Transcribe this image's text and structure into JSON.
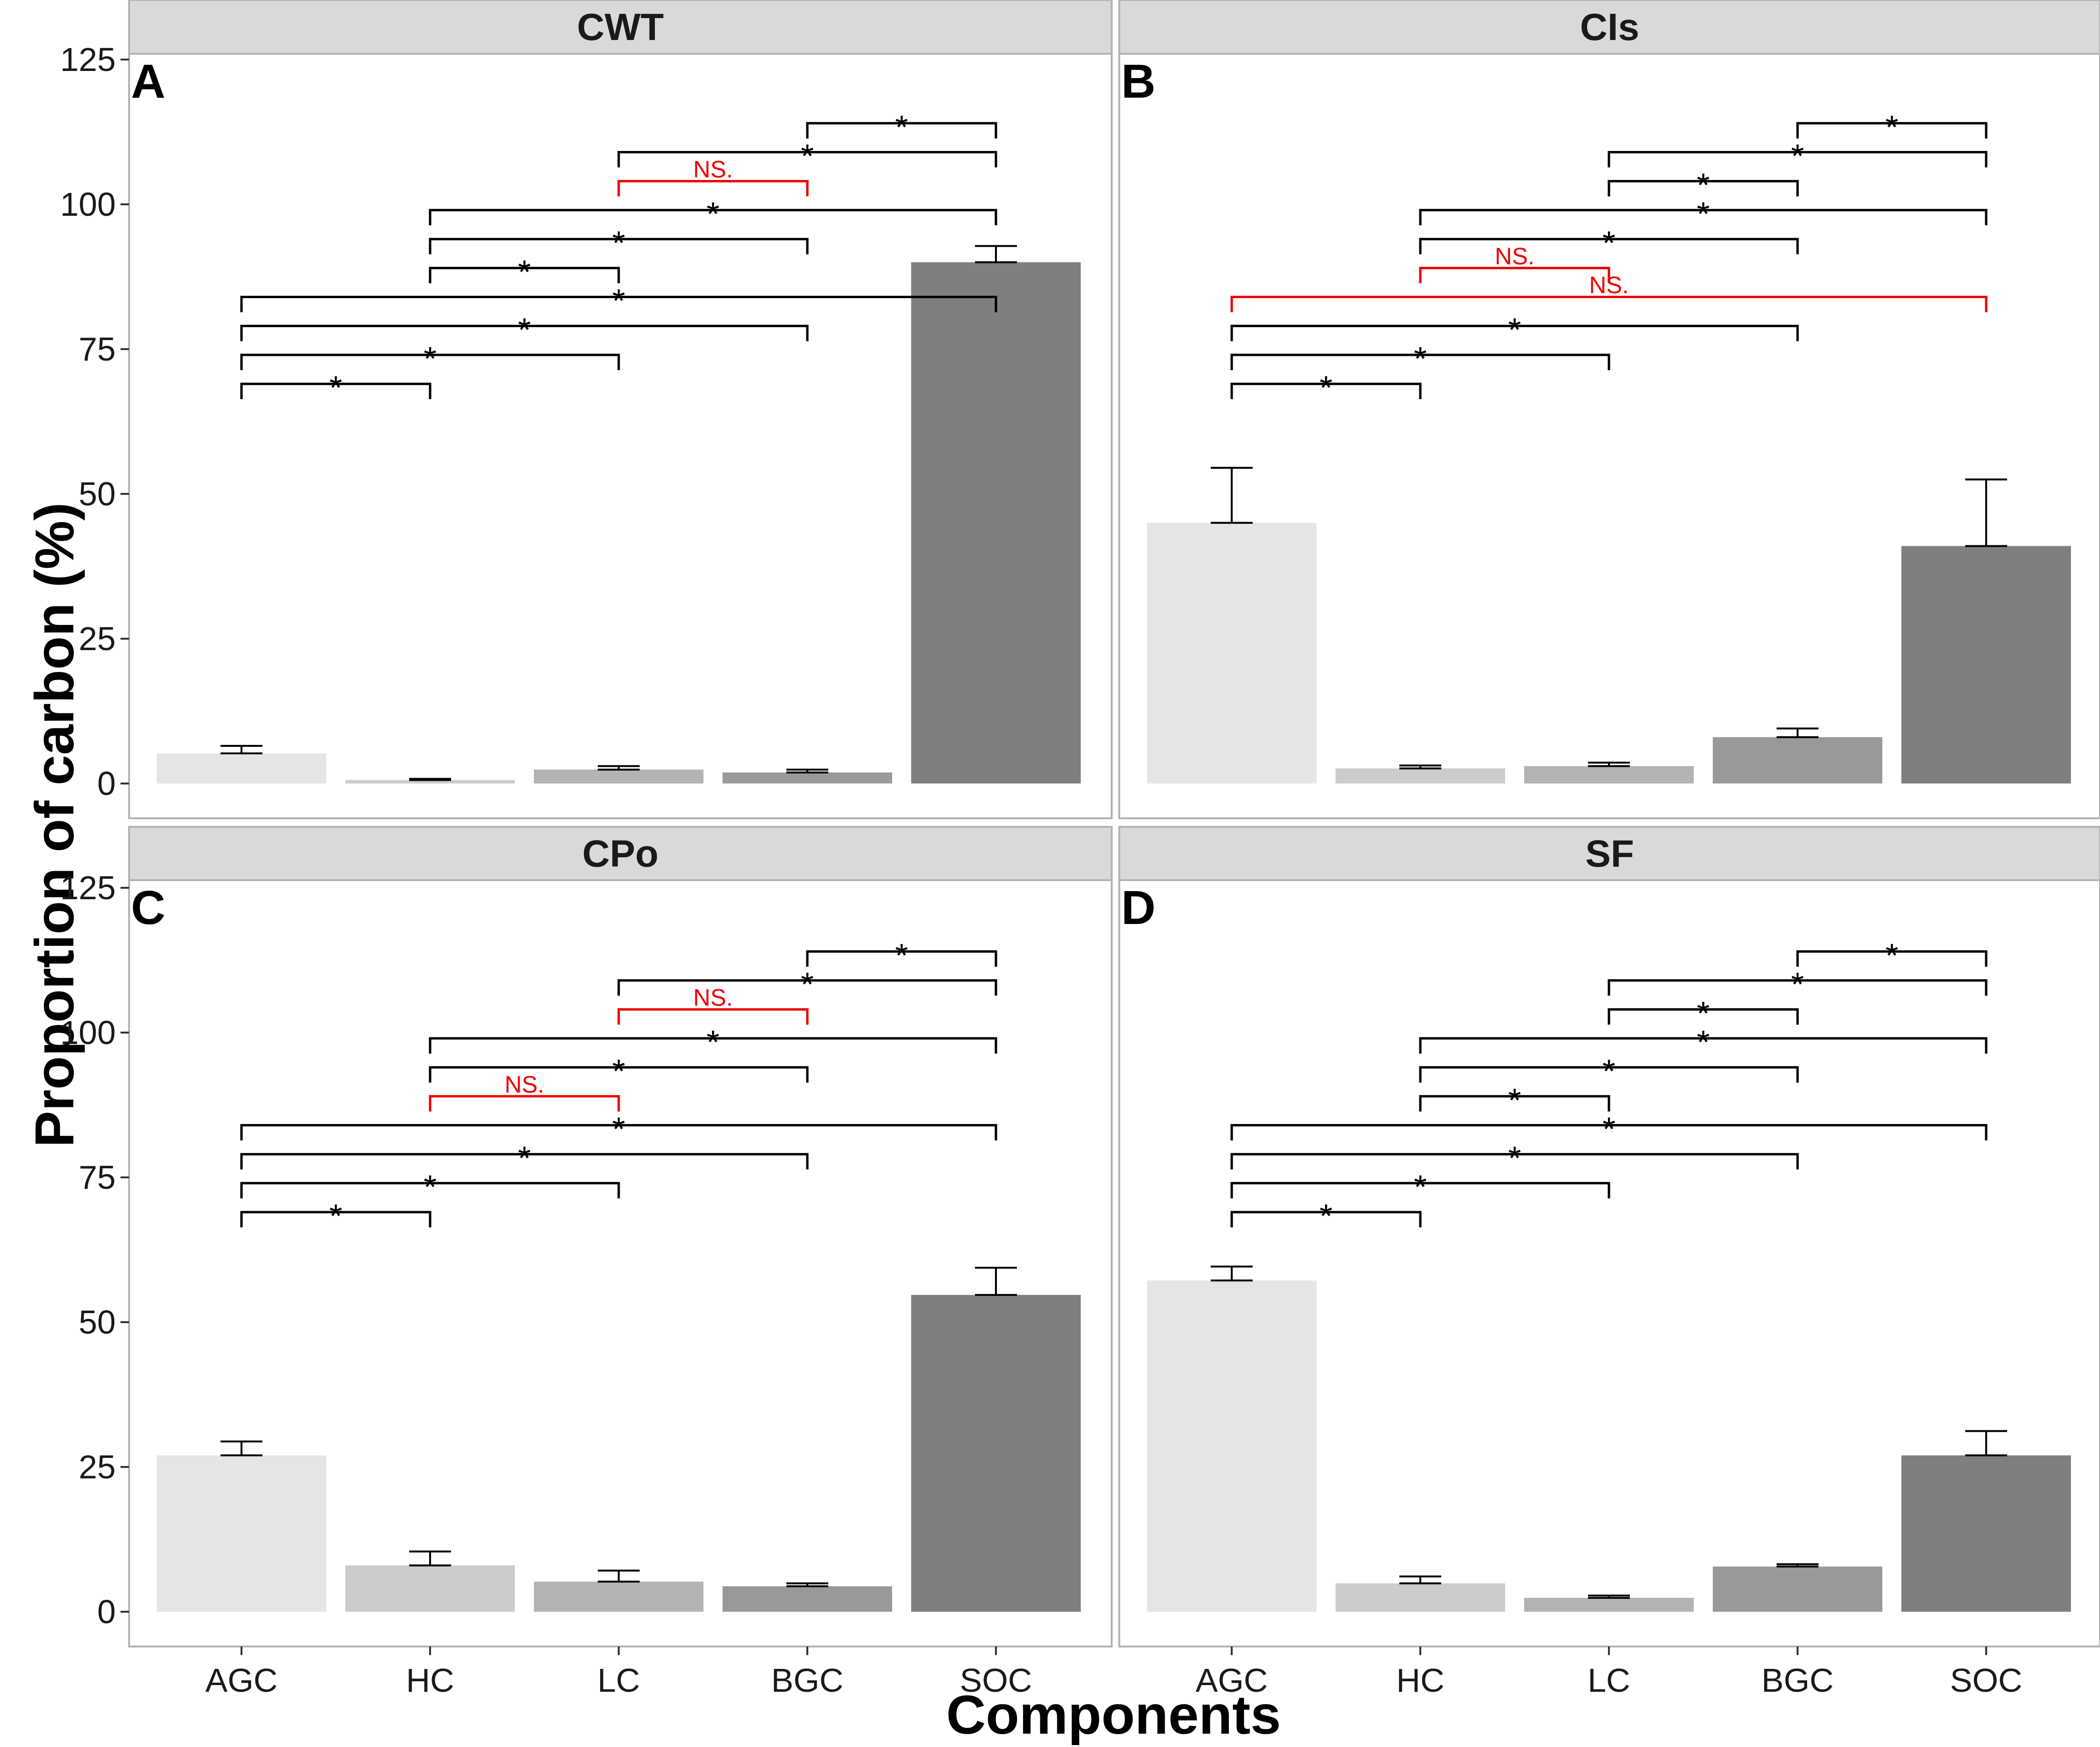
{
  "chart_data": {
    "type": "bar",
    "layout": "2x2 facets",
    "xlabel": "Components",
    "ylabel": "Proportion of carbon (%)",
    "categories": [
      "AGC",
      "HC",
      "LC",
      "BGC",
      "SOC"
    ],
    "ylim": [
      -5,
      130
    ],
    "yticks": [
      0,
      25,
      50,
      75,
      100,
      125
    ],
    "bar_colors": [
      "#e5e5e5",
      "#cccccc",
      "#b3b3b3",
      "#999999",
      "#7f7f7f"
    ],
    "colors": {
      "significant": "#000000",
      "not_significant": "#ee0000",
      "strip_fill": "#d9d9d9",
      "panel_border": "#b3b3b3"
    },
    "panels": [
      {
        "id": "A",
        "title": "CWT",
        "values": [
          5.2,
          0.6,
          2.4,
          1.9,
          90
        ],
        "errors": [
          1.3,
          0.2,
          0.6,
          0.5,
          2.8
        ],
        "comparisons": [
          {
            "from": 0,
            "to": 1,
            "y": 69,
            "label": "*"
          },
          {
            "from": 0,
            "to": 2,
            "y": 74,
            "label": "*"
          },
          {
            "from": 0,
            "to": 3,
            "y": 79,
            "label": "*"
          },
          {
            "from": 0,
            "to": 4,
            "y": 84,
            "label": "*"
          },
          {
            "from": 1,
            "to": 2,
            "y": 89,
            "label": "*"
          },
          {
            "from": 1,
            "to": 3,
            "y": 94,
            "label": "*"
          },
          {
            "from": 1,
            "to": 4,
            "y": 99,
            "label": "*"
          },
          {
            "from": 2,
            "to": 3,
            "y": 104,
            "label": "NS."
          },
          {
            "from": 2,
            "to": 4,
            "y": 109,
            "label": "*"
          },
          {
            "from": 3,
            "to": 4,
            "y": 114,
            "label": "*"
          }
        ]
      },
      {
        "id": "B",
        "title": "CIs",
        "values": [
          45,
          2.6,
          3.0,
          8.0,
          41
        ],
        "errors": [
          9.5,
          0.5,
          0.6,
          1.5,
          11.5
        ],
        "comparisons": [
          {
            "from": 0,
            "to": 1,
            "y": 69,
            "label": "*"
          },
          {
            "from": 0,
            "to": 2,
            "y": 74,
            "label": "*"
          },
          {
            "from": 0,
            "to": 3,
            "y": 79,
            "label": "*"
          },
          {
            "from": 0,
            "to": 4,
            "y": 84,
            "label": "NS."
          },
          {
            "from": 1,
            "to": 2,
            "y": 89,
            "label": "NS."
          },
          {
            "from": 1,
            "to": 3,
            "y": 94,
            "label": "*"
          },
          {
            "from": 1,
            "to": 4,
            "y": 99,
            "label": "*"
          },
          {
            "from": 2,
            "to": 3,
            "y": 104,
            "label": "*"
          },
          {
            "from": 2,
            "to": 4,
            "y": 109,
            "label": "*"
          },
          {
            "from": 3,
            "to": 4,
            "y": 114,
            "label": "*"
          }
        ]
      },
      {
        "id": "C",
        "title": "CPo",
        "values": [
          27,
          8.0,
          5.2,
          4.4,
          54.7
        ],
        "errors": [
          2.4,
          2.4,
          1.9,
          0.5,
          4.7
        ],
        "comparisons": [
          {
            "from": 0,
            "to": 1,
            "y": 69,
            "label": "*"
          },
          {
            "from": 0,
            "to": 2,
            "y": 74,
            "label": "*"
          },
          {
            "from": 0,
            "to": 3,
            "y": 79,
            "label": "*"
          },
          {
            "from": 0,
            "to": 4,
            "y": 84,
            "label": "*"
          },
          {
            "from": 1,
            "to": 2,
            "y": 89,
            "label": "NS."
          },
          {
            "from": 1,
            "to": 3,
            "y": 94,
            "label": "*"
          },
          {
            "from": 1,
            "to": 4,
            "y": 99,
            "label": "*"
          },
          {
            "from": 2,
            "to": 3,
            "y": 104,
            "label": "NS."
          },
          {
            "from": 2,
            "to": 4,
            "y": 109,
            "label": "*"
          },
          {
            "from": 3,
            "to": 4,
            "y": 114,
            "label": "*"
          }
        ]
      },
      {
        "id": "D",
        "title": "SF",
        "values": [
          57.2,
          4.9,
          2.4,
          7.8,
          27.0
        ],
        "errors": [
          2.4,
          1.2,
          0.4,
          0.4,
          4.2
        ],
        "comparisons": [
          {
            "from": 0,
            "to": 1,
            "y": 69,
            "label": "*"
          },
          {
            "from": 0,
            "to": 2,
            "y": 74,
            "label": "*"
          },
          {
            "from": 0,
            "to": 3,
            "y": 79,
            "label": "*"
          },
          {
            "from": 0,
            "to": 4,
            "y": 84,
            "label": "*"
          },
          {
            "from": 1,
            "to": 2,
            "y": 89,
            "label": "*"
          },
          {
            "from": 1,
            "to": 3,
            "y": 94,
            "label": "*"
          },
          {
            "from": 1,
            "to": 4,
            "y": 99,
            "label": "*"
          },
          {
            "from": 2,
            "to": 3,
            "y": 104,
            "label": "*"
          },
          {
            "from": 2,
            "to": 4,
            "y": 109,
            "label": "*"
          },
          {
            "from": 3,
            "to": 4,
            "y": 114,
            "label": "*"
          }
        ]
      }
    ]
  }
}
